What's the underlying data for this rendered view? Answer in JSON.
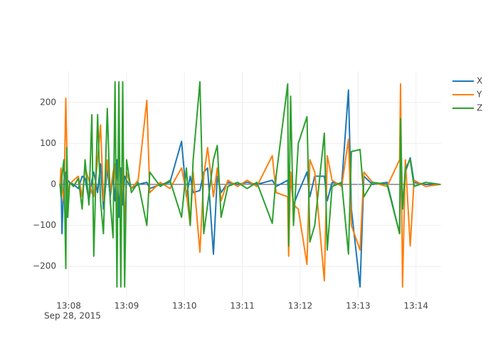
{
  "chart_data": {
    "type": "line",
    "x": [
      "2015-09-28 13:07:51",
      "2015-09-28 13:07:52",
      "2015-09-28 13:07:53",
      "2015-09-28 13:07:55",
      "2015-09-28 13:07:57",
      "2015-09-28 13:07:58",
      "2015-09-28 13:07:59",
      "2015-09-28 13:08:01",
      "2015-09-28 13:08:05",
      "2015-09-28 13:08:10",
      "2015-09-28 13:08:14",
      "2015-09-28 13:08:17",
      "2015-09-28 13:08:21",
      "2015-09-28 13:08:24",
      "2015-09-28 13:08:26",
      "2015-09-28 13:08:30",
      "2015-09-28 13:08:33",
      "2015-09-28 13:08:36",
      "2015-09-28 13:08:40",
      "2015-09-28 13:08:43",
      "2015-09-28 13:08:46",
      "2015-09-28 13:08:48",
      "2015-09-28 13:08:50",
      "2015-09-28 13:08:52",
      "2015-09-28 13:08:54",
      "2015-09-28 13:08:56",
      "2015-09-28 13:08:58",
      "2015-09-28 13:09:00",
      "2015-09-28 13:09:05",
      "2015-09-28 13:09:12",
      "2015-09-28 13:09:21",
      "2015-09-28 13:09:24",
      "2015-09-28 13:09:35",
      "2015-09-28 13:09:45",
      "2015-09-28 13:09:57",
      "2015-09-28 13:10:02",
      "2015-09-28 13:10:06",
      "2015-09-28 13:10:09",
      "2015-09-28 13:10:16",
      "2015-09-28 13:10:20",
      "2015-09-28 13:10:24",
      "2015-09-28 13:10:30",
      "2015-09-28 13:10:34",
      "2015-09-28 13:10:38",
      "2015-09-28 13:10:45",
      "2015-09-28 13:10:55",
      "2015-09-28 13:11:05",
      "2015-09-28 13:11:15",
      "2015-09-28 13:11:31",
      "2015-09-28 13:11:35",
      "2015-09-28 13:11:47",
      "2015-09-28 13:11:48",
      "2015-09-28 13:11:50",
      "2015-09-28 13:11:53",
      "2015-09-28 13:11:58",
      "2015-09-28 13:12:07",
      "2015-09-28 13:12:10",
      "2015-09-28 13:12:15",
      "2015-09-28 13:12:25",
      "2015-09-28 13:12:28",
      "2015-09-28 13:12:33",
      "2015-09-28 13:12:43",
      "2015-09-28 13:12:50",
      "2015-09-28 13:12:53",
      "2015-09-28 13:13:02",
      "2015-09-28 13:13:06",
      "2015-09-28 13:13:15",
      "2015-09-28 13:13:30",
      "2015-09-28 13:13:43",
      "2015-09-28 13:13:44",
      "2015-09-28 13:13:46",
      "2015-09-28 13:13:49",
      "2015-09-28 13:13:54",
      "2015-09-28 13:13:58",
      "2015-09-28 13:14:10",
      "2015-09-28 13:14:25"
    ],
    "series": [
      {
        "name": "X",
        "color": "#1f77b4",
        "values": [
          0,
          20,
          -120,
          10,
          30,
          -80,
          10,
          5,
          0,
          -10,
          20,
          15,
          -40,
          10,
          30,
          -20,
          50,
          -60,
          40,
          -30,
          20,
          -40,
          60,
          -80,
          40,
          -50,
          20,
          10,
          -10,
          0,
          5,
          -10,
          0,
          5,
          105,
          -30,
          20,
          -20,
          -15,
          30,
          40,
          -170,
          20,
          -20,
          5,
          0,
          5,
          0,
          10,
          -5,
          10,
          -30,
          20,
          -50,
          -20,
          30,
          -30,
          20,
          20,
          -40,
          5,
          0,
          230,
          -60,
          -250,
          20,
          0,
          5,
          -120,
          60,
          -60,
          30,
          65,
          5,
          0,
          0
        ]
      },
      {
        "name": "Y",
        "color": "#ff7f0e",
        "values": [
          0,
          40,
          -10,
          -40,
          210,
          100,
          -20,
          0,
          10,
          20,
          -30,
          40,
          10,
          -20,
          -30,
          60,
          145,
          -40,
          60,
          -20,
          30,
          50,
          -80,
          100,
          -60,
          40,
          -100,
          30,
          -10,
          10,
          205,
          -20,
          5,
          -10,
          40,
          -20,
          -100,
          30,
          -165,
          20,
          90,
          -30,
          40,
          -40,
          10,
          -5,
          10,
          -5,
          70,
          -20,
          -30,
          -175,
          30,
          -50,
          -60,
          -195,
          60,
          30,
          -235,
          70,
          10,
          -5,
          110,
          -100,
          -160,
          30,
          5,
          -5,
          60,
          245,
          -250,
          60,
          -150,
          10,
          -5,
          0
        ]
      },
      {
        "name": "Z",
        "color": "#2ca02c",
        "values": [
          0,
          -30,
          20,
          60,
          -205,
          90,
          -80,
          5,
          -5,
          15,
          -60,
          60,
          -50,
          170,
          -175,
          170,
          -40,
          -120,
          185,
          -40,
          -130,
          250,
          -250,
          250,
          -250,
          250,
          -250,
          60,
          -20,
          5,
          -100,
          30,
          -5,
          10,
          -80,
          40,
          -100,
          60,
          250,
          -120,
          -50,
          60,
          95,
          -80,
          -5,
          5,
          -10,
          5,
          -95,
          20,
          245,
          -150,
          215,
          -100,
          100,
          165,
          -140,
          -100,
          125,
          -160,
          -5,
          5,
          -170,
          80,
          85,
          -30,
          5,
          0,
          -120,
          160,
          -60,
          40,
          60,
          -5,
          5,
          0
        ]
      }
    ],
    "xlim": [
      "2015-09-28 13:07:50",
      "2015-09-28 13:14:26"
    ],
    "xticks": [
      {
        "value": "2015-09-28 13:08",
        "label": "13:08"
      },
      {
        "value": "2015-09-28 13:09",
        "label": "13:09"
      },
      {
        "value": "2015-09-28 13:10",
        "label": "13:10"
      },
      {
        "value": "2015-09-28 13:11",
        "label": "13:11"
      },
      {
        "value": "2015-09-28 13:12",
        "label": "13:12"
      },
      {
        "value": "2015-09-28 13:13",
        "label": "13:13"
      },
      {
        "value": "2015-09-28 13:14",
        "label": "13:14"
      }
    ],
    "xtick_date": "Sep 28, 2015",
    "ylim": [
      -276,
      276
    ],
    "yticks": [
      {
        "value": -200,
        "label": "−200"
      },
      {
        "value": -100,
        "label": "−100"
      },
      0,
      100,
      200
    ],
    "grid": true
  }
}
